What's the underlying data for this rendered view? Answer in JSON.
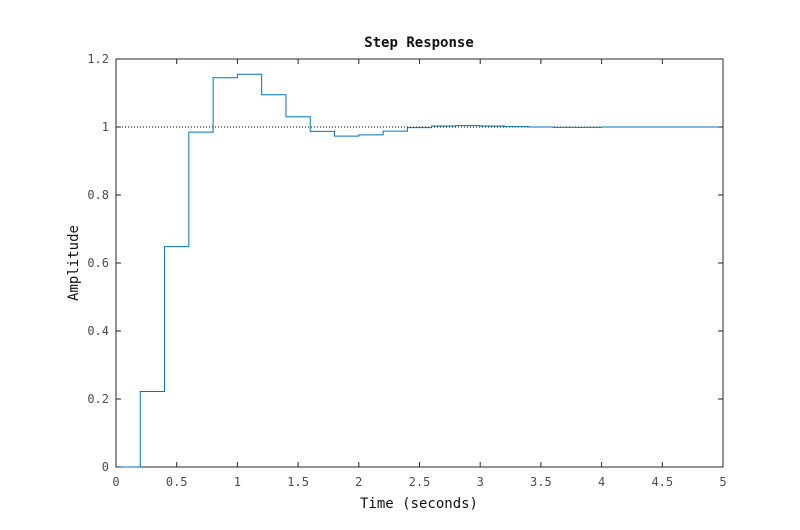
{
  "chart_data": {
    "type": "line",
    "title": "Step Response",
    "xlabel": "Time (seconds)",
    "ylabel": "Amplitude",
    "xlim": [
      0,
      5
    ],
    "ylim": [
      0,
      1.2
    ],
    "x_ticks": [
      "0",
      "0.5",
      "1",
      "1.5",
      "2",
      "2.5",
      "3",
      "3.5",
      "4",
      "4.5",
      "5"
    ],
    "y_ticks": [
      "0",
      "0.2",
      "0.4",
      "0.6",
      "0.8",
      "1",
      "1.2"
    ],
    "grid": false,
    "step_style": "zero-order-hold",
    "reference_line": {
      "y": 1.0,
      "style": "dotted",
      "color": "#000000"
    },
    "series": [
      {
        "color": "#0072bd",
        "x": [
          0,
          0.2,
          0.4,
          0.6,
          0.8,
          1.0,
          1.2,
          1.4,
          1.6,
          1.8,
          2.0,
          2.2,
          2.4,
          2.6,
          2.8,
          3.0,
          3.2,
          3.4,
          3.6,
          3.8,
          4.0,
          4.2,
          4.4,
          4.6,
          4.8
        ],
        "y": [
          0,
          0.222,
          0.648,
          0.985,
          1.145,
          1.155,
          1.095,
          1.03,
          0.987,
          0.973,
          0.977,
          0.988,
          0.998,
          1.003,
          1.004,
          1.003,
          1.001,
          1.0,
          0.999,
          0.999,
          1.0,
          1.0,
          1.0,
          1.0,
          1.0
        ]
      }
    ]
  }
}
